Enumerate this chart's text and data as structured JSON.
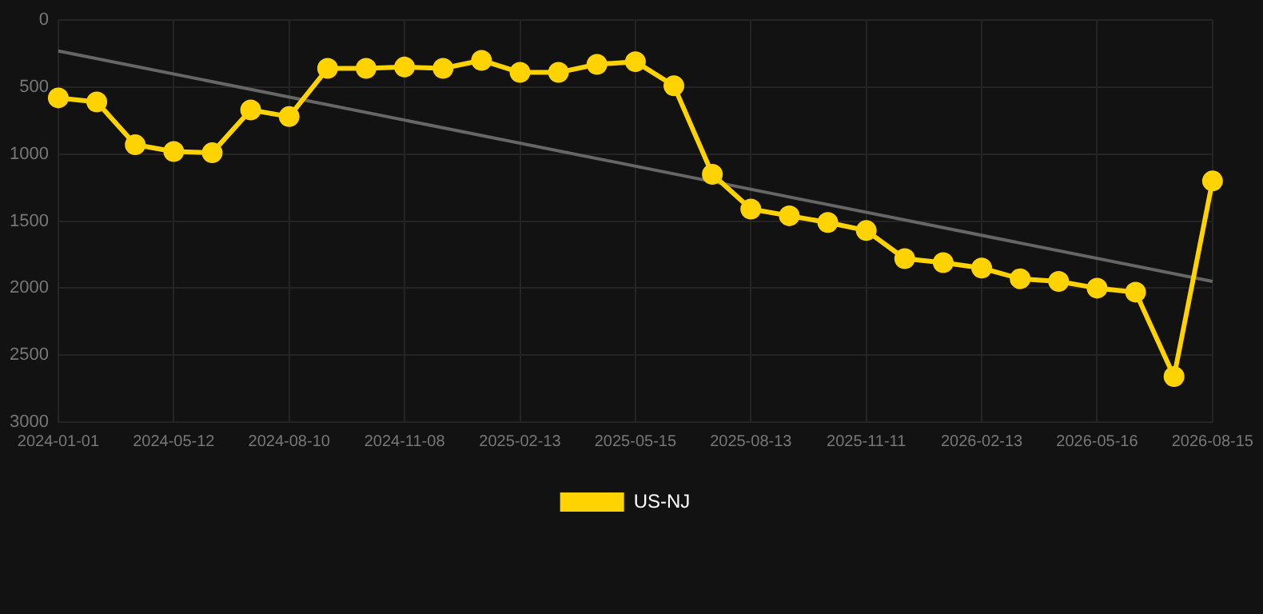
{
  "chart_data": {
    "type": "line",
    "categories": [
      "2024-01-01",
      null,
      null,
      "2024-05-12",
      null,
      null,
      "2024-08-10",
      null,
      null,
      "2024-11-08",
      null,
      null,
      "2025-02-13",
      null,
      null,
      "2025-05-15",
      null,
      null,
      "2025-08-13",
      null,
      null,
      "2025-11-11",
      null,
      null,
      "2026-02-13",
      null,
      null,
      "2026-05-16",
      null,
      null,
      "2026-08-15"
    ],
    "series": [
      {
        "name": "US-NJ",
        "color": "#ffd300",
        "marker": "circle",
        "values": [
          580,
          610,
          930,
          980,
          990,
          670,
          720,
          360,
          360,
          350,
          360,
          300,
          390,
          390,
          330,
          310,
          490,
          1150,
          1410,
          1460,
          1510,
          1570,
          1780,
          1810,
          1850,
          1930,
          1950,
          2000,
          2030,
          2660,
          1200
        ]
      },
      {
        "type": "line",
        "color": "#666666",
        "marker": "none",
        "values": [
          230,
          null,
          null,
          null,
          null,
          null,
          null,
          null,
          null,
          null,
          null,
          null,
          null,
          null,
          null,
          null,
          null,
          null,
          null,
          null,
          null,
          null,
          null,
          null,
          null,
          null,
          null,
          null,
          null,
          null,
          1950
        ]
      }
    ],
    "ylim": [
      3000,
      0
    ],
    "yticks": [
      0,
      500,
      1000,
      1500,
      2000,
      2500,
      3000
    ],
    "grid": true,
    "legend": "bottom"
  }
}
